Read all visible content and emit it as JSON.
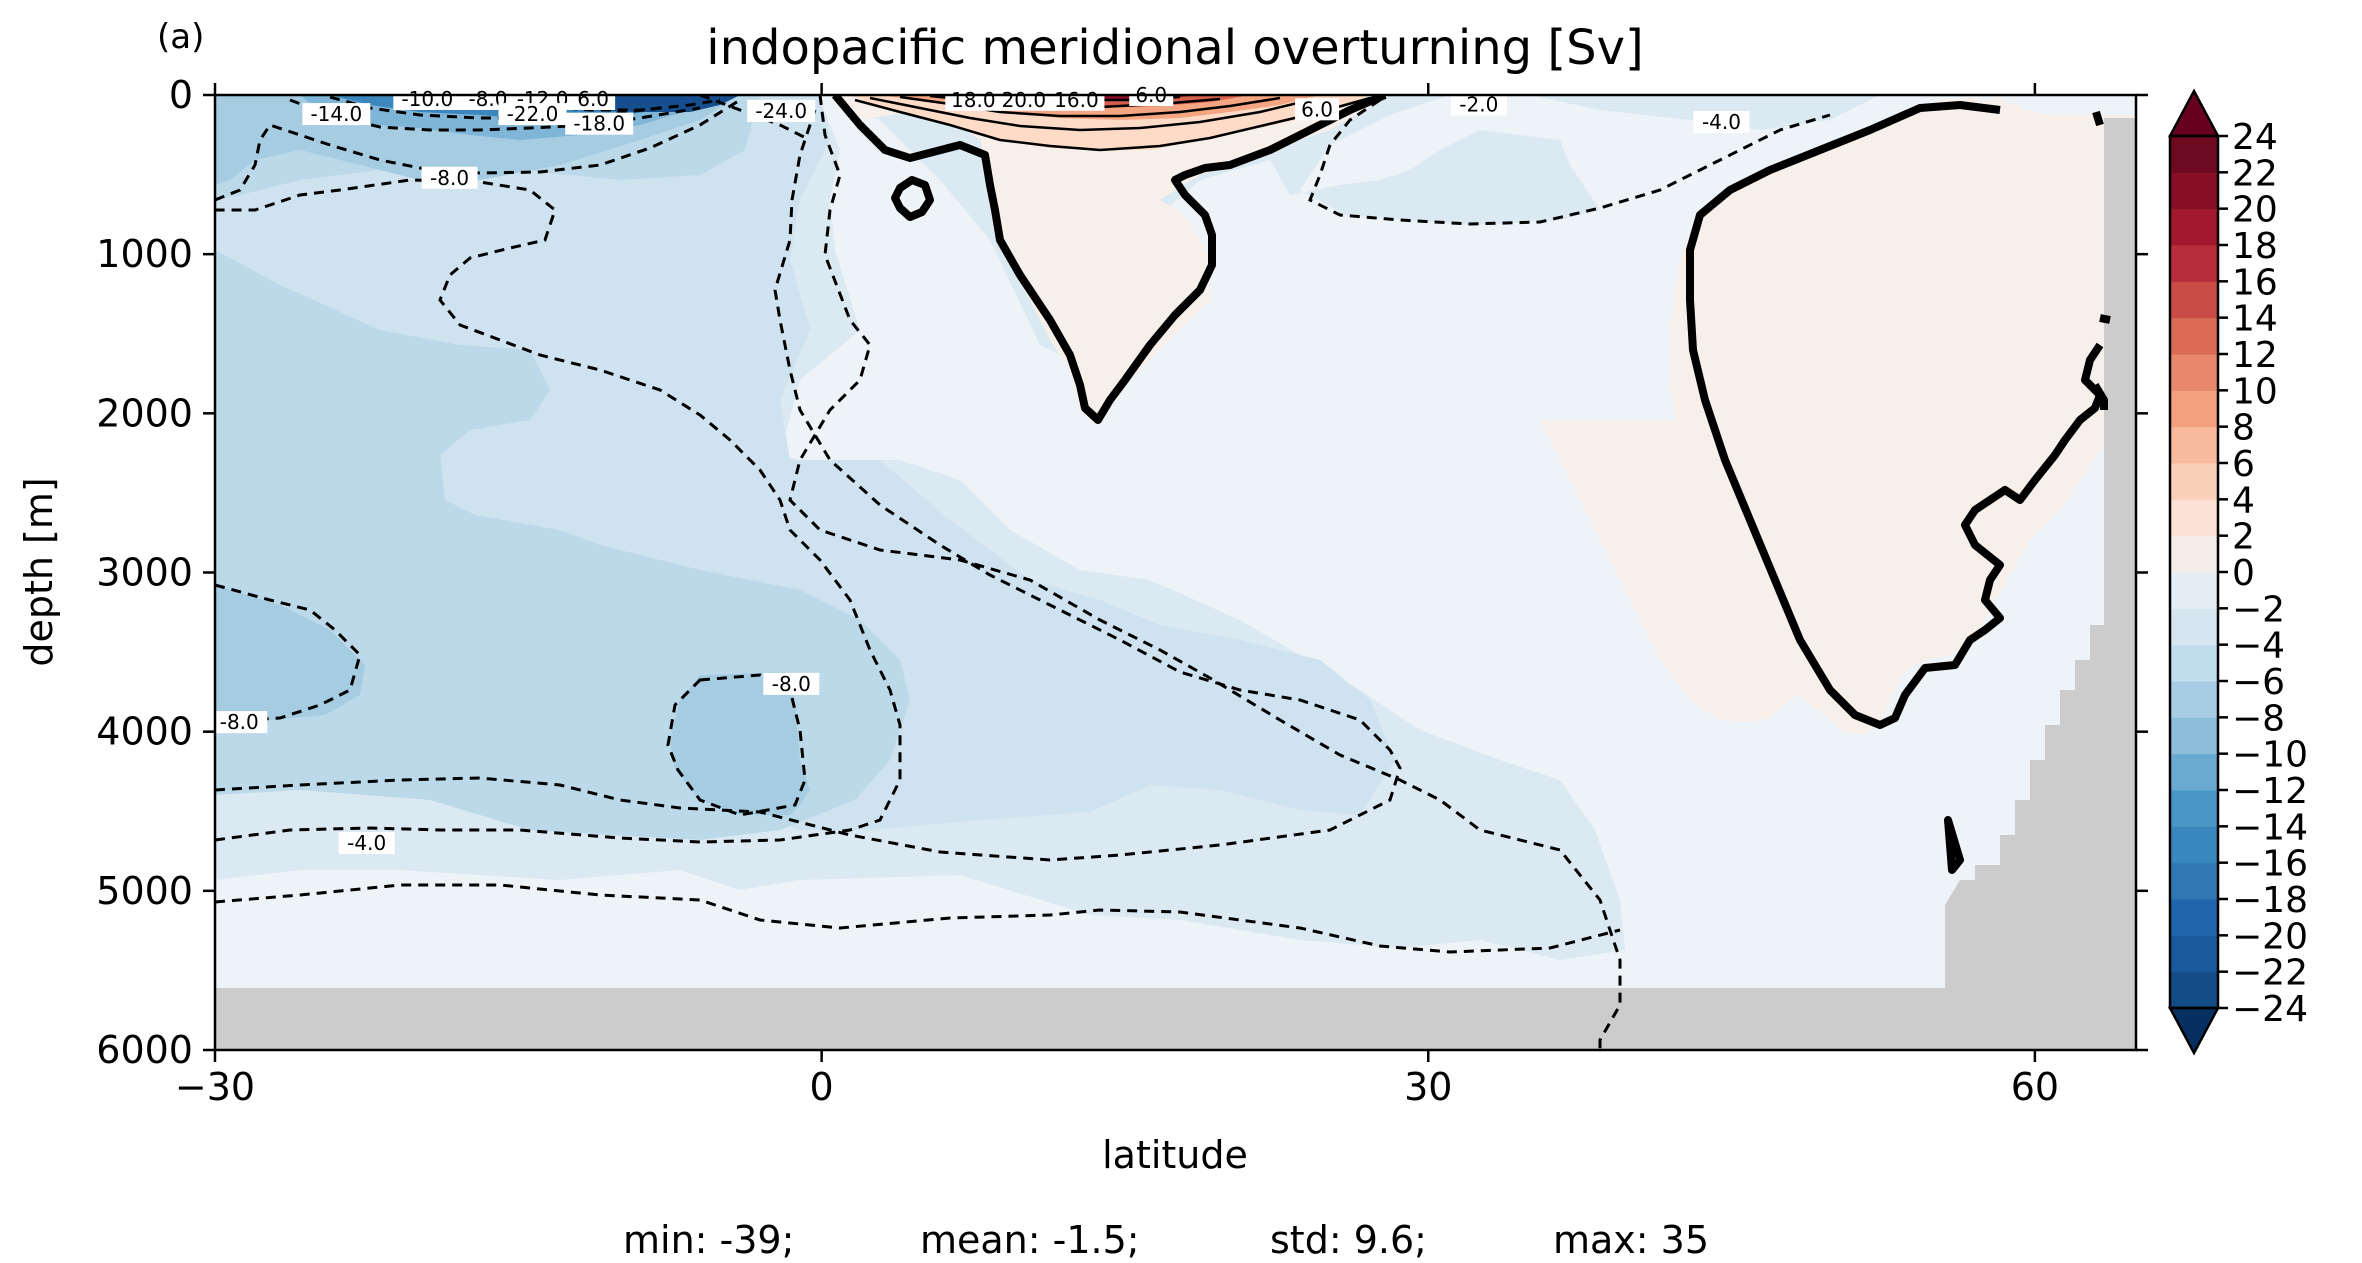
{
  "panel_label": "(a)",
  "title": "indopacific meridional overturning [Sv]",
  "xlabel": "latitude",
  "ylabel": "depth [m]",
  "stats": {
    "min": "min: -39;",
    "mean": "mean: -1.5;",
    "std": "std: 9.6;",
    "max": "max: 35"
  },
  "chart_data": {
    "type": "heatmap",
    "title": "indopacific meridional overturning [Sv]",
    "xlabel": "latitude",
    "ylabel": "depth [m]",
    "xlim": [
      -30,
      65
    ],
    "ylim": [
      6000,
      0
    ],
    "x_ticks": [
      -30,
      0,
      30,
      60
    ],
    "x_tick_labels": [
      "−30",
      "0",
      "30",
      "60"
    ],
    "y_ticks": [
      0,
      1000,
      2000,
      3000,
      4000,
      5000,
      6000
    ],
    "y_tick_labels": [
      "0",
      "1000",
      "2000",
      "3000",
      "4000",
      "5000",
      "6000"
    ],
    "colorbar": {
      "levels": [
        -24,
        -22,
        -20,
        -18,
        -16,
        -14,
        -12,
        -10,
        -8,
        -6,
        -4,
        -2,
        0,
        2,
        4,
        6,
        8,
        10,
        12,
        14,
        16,
        18,
        20,
        22,
        24
      ],
      "tick_labels": [
        "−24",
        "−22",
        "−20",
        "−18",
        "−16",
        "−14",
        "−12",
        "−10",
        "−8",
        "−6",
        "−4",
        "−2",
        "0",
        "2",
        "4",
        "6",
        "8",
        "10",
        "12",
        "14",
        "16",
        "18",
        "20",
        "22",
        "24"
      ],
      "colors": [
        "#053061",
        "#134c87",
        "#2166ac",
        "#3480b9",
        "#4393c3",
        "#6eaad0",
        "#92c5de",
        "#b2d5e7",
        "#d1e5f0",
        "#e0edf5",
        "#eef3f7",
        "#f5efec",
        "#fddbc7",
        "#f8c1a5",
        "#f4a582",
        "#e7876b",
        "#d6604d",
        "#c5404a",
        "#b2182b",
        "#8f0d27",
        "#670a1e"
      ],
      "extend": "both",
      "cmap": "RdBu_r"
    },
    "contour_labels": [
      {
        "text": "-10.0",
        "x": -19.5,
        "y": 25
      },
      {
        "text": "-8.0",
        "x": -16.5,
        "y": 25
      },
      {
        "text": "-12.0",
        "x": -13.8,
        "y": 25
      },
      {
        "text": "6.0",
        "x": -11.3,
        "y": 25
      },
      {
        "text": "-22.0",
        "x": -14.3,
        "y": 120
      },
      {
        "text": "-18.0",
        "x": -11.0,
        "y": 180
      },
      {
        "text": "-14.0",
        "x": -24.0,
        "y": 120
      },
      {
        "text": "-8.0",
        "x": -18.4,
        "y": 520
      },
      {
        "text": "-24.0",
        "x": -2.0,
        "y": 100
      },
      {
        "text": "18.0",
        "x": 7.5,
        "y": 30
      },
      {
        "text": "20.0",
        "x": 10.0,
        "y": 30
      },
      {
        "text": "16.0",
        "x": 12.6,
        "y": 30
      },
      {
        "text": "6.0",
        "x": 16.3,
        "y": 0
      },
      {
        "text": "6.0",
        "x": 24.5,
        "y": 90
      },
      {
        "text": "-2.0",
        "x": 32.5,
        "y": 60
      },
      {
        "text": "-4.0",
        "x": 44.5,
        "y": 170
      },
      {
        "text": "-8.0",
        "x": -28.8,
        "y": 3940
      },
      {
        "text": "-8.0",
        "x": -1.5,
        "y": 3700
      },
      {
        "text": "-4.0",
        "x": -22.5,
        "y": 4700
      }
    ],
    "zero_contour_color": "#000000",
    "land_mask_color": "#cccccc"
  }
}
